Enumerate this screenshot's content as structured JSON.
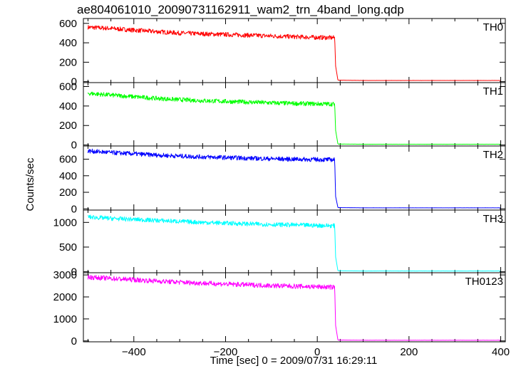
{
  "title": "ae804061010_20090731162911_wam2_trn_4band_long.qdp",
  "ylabel": "Counts/sec",
  "xlabel": "Time [sec] 0 = 2009/07/31 16:29:11",
  "chart_data": {
    "type": "line",
    "title": "ae804061010_20090731162911_wam2_trn_4band_long.qdp",
    "xlabel": "Time [sec] 0 = 2009/07/31 16:29:11",
    "ylabel": "Counts/sec",
    "xlim": [
      -510,
      410
    ],
    "x_ticks": [
      -400,
      -200,
      0,
      200,
      400
    ],
    "grid": false,
    "legend": "none",
    "series": [
      {
        "name": "TH0",
        "color": "#ff0000",
        "ylim": [
          -10,
          650
        ],
        "y_ticks": [
          0,
          200,
          400,
          600
        ],
        "x": [
          -500,
          -450,
          -400,
          -350,
          -300,
          -250,
          -200,
          -150,
          -100,
          -50,
          0,
          38,
          40,
          45,
          100,
          200,
          300,
          400
        ],
        "values": [
          560,
          548,
          530,
          515,
          500,
          492,
          485,
          478,
          470,
          462,
          455,
          452,
          160,
          15,
          12,
          12,
          12,
          12
        ]
      },
      {
        "name": "TH1",
        "color": "#00ff00",
        "ylim": [
          -10,
          640
        ],
        "y_ticks": [
          0,
          200,
          400,
          600
        ],
        "x": [
          -500,
          -450,
          -400,
          -350,
          -300,
          -250,
          -200,
          -150,
          -100,
          -50,
          0,
          38,
          40,
          45,
          100,
          200,
          300,
          400
        ],
        "values": [
          530,
          512,
          495,
          478,
          465,
          455,
          447,
          440,
          432,
          426,
          422,
          420,
          150,
          10,
          8,
          8,
          8,
          8
        ]
      },
      {
        "name": "TH2",
        "color": "#0000ff",
        "ylim": [
          -15,
          760
        ],
        "y_ticks": [
          0,
          200,
          400,
          600
        ],
        "x": [
          -500,
          -450,
          -400,
          -350,
          -300,
          -250,
          -200,
          -150,
          -100,
          -50,
          0,
          38,
          40,
          45,
          100,
          200,
          300,
          400
        ],
        "values": [
          700,
          680,
          665,
          650,
          638,
          628,
          620,
          612,
          605,
          600,
          596,
          594,
          150,
          15,
          12,
          12,
          12,
          12
        ]
      },
      {
        "name": "TH3",
        "color": "#00ffff",
        "ylim": [
          -20,
          1250
        ],
        "y_ticks": [
          0,
          500,
          1000
        ],
        "x": [
          -500,
          -450,
          -400,
          -350,
          -300,
          -250,
          -200,
          -150,
          -100,
          -50,
          0,
          38,
          40,
          45,
          100,
          200,
          300,
          400
        ],
        "values": [
          1110,
          1080,
          1060,
          1040,
          1020,
          1000,
          985,
          970,
          958,
          948,
          938,
          932,
          300,
          20,
          15,
          15,
          15,
          15
        ]
      },
      {
        "name": "TH0123",
        "color": "#ff00ff",
        "ylim": [
          -40,
          3100
        ],
        "y_ticks": [
          0,
          1000,
          2000,
          3000
        ],
        "x": [
          -500,
          -450,
          -400,
          -350,
          -300,
          -250,
          -200,
          -150,
          -100,
          -50,
          0,
          38,
          40,
          45,
          100,
          200,
          300,
          400
        ],
        "values": [
          2900,
          2840,
          2780,
          2720,
          2670,
          2625,
          2585,
          2550,
          2515,
          2485,
          2460,
          2440,
          700,
          40,
          30,
          30,
          30,
          30
        ]
      }
    ]
  }
}
